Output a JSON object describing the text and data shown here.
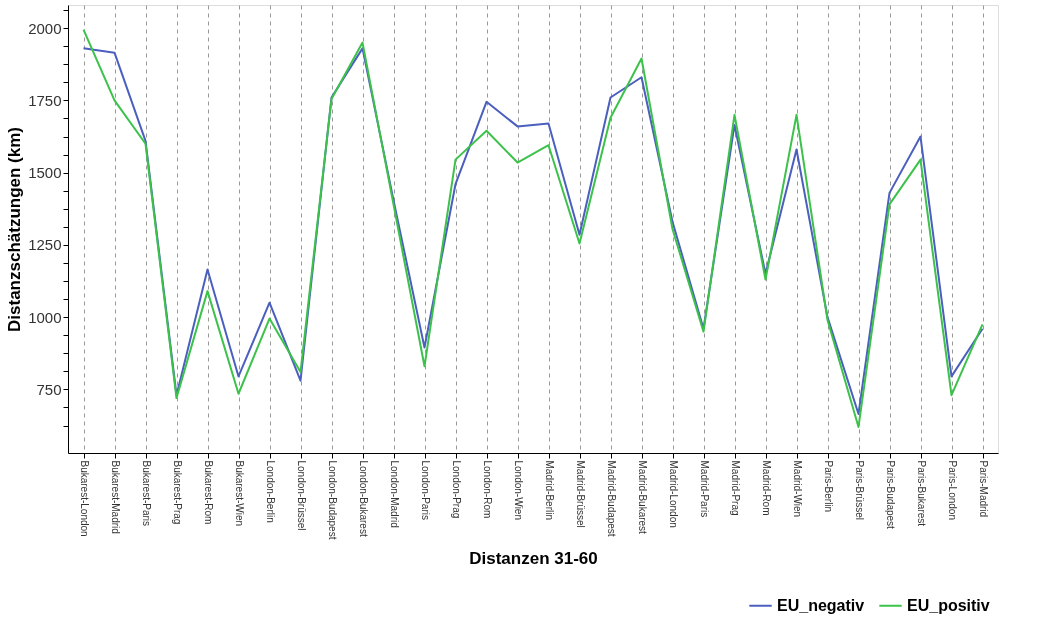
{
  "chart_data": {
    "type": "line",
    "xlabel": "Distanzen 31-60",
    "ylabel": "Distanzschätzungen (km)",
    "categories": [
      "Bukarest-London",
      "Bukarest-Madrid",
      "Bukarest-Paris",
      "Bukarest-Prag",
      "Bukarest-Rom",
      "Bukarest-Wien",
      "London-Berlin",
      "London-Brüssel",
      "London-Budapest",
      "London-Bukarest",
      "London-Madrid",
      "London-Paris",
      "London-Prag",
      "London-Rom",
      "London-Wien",
      "Madrid-Berlin",
      "Madrid-Brüssel",
      "Madrid-Budapest",
      "Madrid-Bukarest",
      "Madrid-London",
      "Madrid-Paris",
      "Madrid-Prag",
      "Madrid-Rom",
      "Madrid-Wien",
      "Paris-Berlin",
      "Paris-Brüssel",
      "Paris-Budapest",
      "Paris-Bukarest",
      "Paris-London",
      "Paris-Madrid"
    ],
    "series": [
      {
        "name": "EU_negativ",
        "color": "#4b5fbe",
        "values": [
          1930,
          1915,
          1610,
          730,
          1165,
          795,
          1050,
          780,
          1760,
          1930,
          1405,
          895,
          1460,
          1745,
          1660,
          1670,
          1285,
          1760,
          1830,
          1330,
          960,
          1665,
          1150,
          1580,
          1000,
          665,
          1430,
          1625,
          795,
          960
        ]
      },
      {
        "name": "EU_positiv",
        "color": "#3cc24a",
        "values": [
          1995,
          1750,
          1600,
          720,
          1090,
          735,
          995,
          810,
          1755,
          1950,
          1390,
          830,
          1545,
          1645,
          1535,
          1595,
          1255,
          1690,
          1895,
          1305,
          950,
          1700,
          1130,
          1700,
          990,
          620,
          1390,
          1545,
          730,
          975
        ]
      }
    ],
    "ylim": [
      530,
      2080
    ],
    "yticks": [
      {
        "value": 625,
        "label": null
      },
      {
        "value": 687.5,
        "label": null
      },
      750,
      {
        "value": 812.5,
        "label": null
      },
      {
        "value": 875,
        "label": null
      },
      {
        "value": 937.5,
        "label": null
      },
      1000,
      {
        "value": 1062.5,
        "label": null
      },
      {
        "value": 1125,
        "label": null
      },
      {
        "value": 1187.5,
        "label": null
      },
      1250,
      {
        "value": 1312.5,
        "label": null
      },
      {
        "value": 1375,
        "label": null
      },
      {
        "value": 1437.5,
        "label": null
      },
      1500,
      {
        "value": 1562.5,
        "label": null
      },
      {
        "value": 1625,
        "label": null
      },
      {
        "value": 1687.5,
        "label": null
      },
      1750,
      {
        "value": 1812.5,
        "label": null
      },
      {
        "value": 1875,
        "label": null
      },
      {
        "value": 1937.5,
        "label": null
      },
      2000,
      {
        "value": 2062.5,
        "label": null
      }
    ],
    "grid": "x",
    "legend": "bottom right",
    "line_style": "solid",
    "marker": "none"
  }
}
